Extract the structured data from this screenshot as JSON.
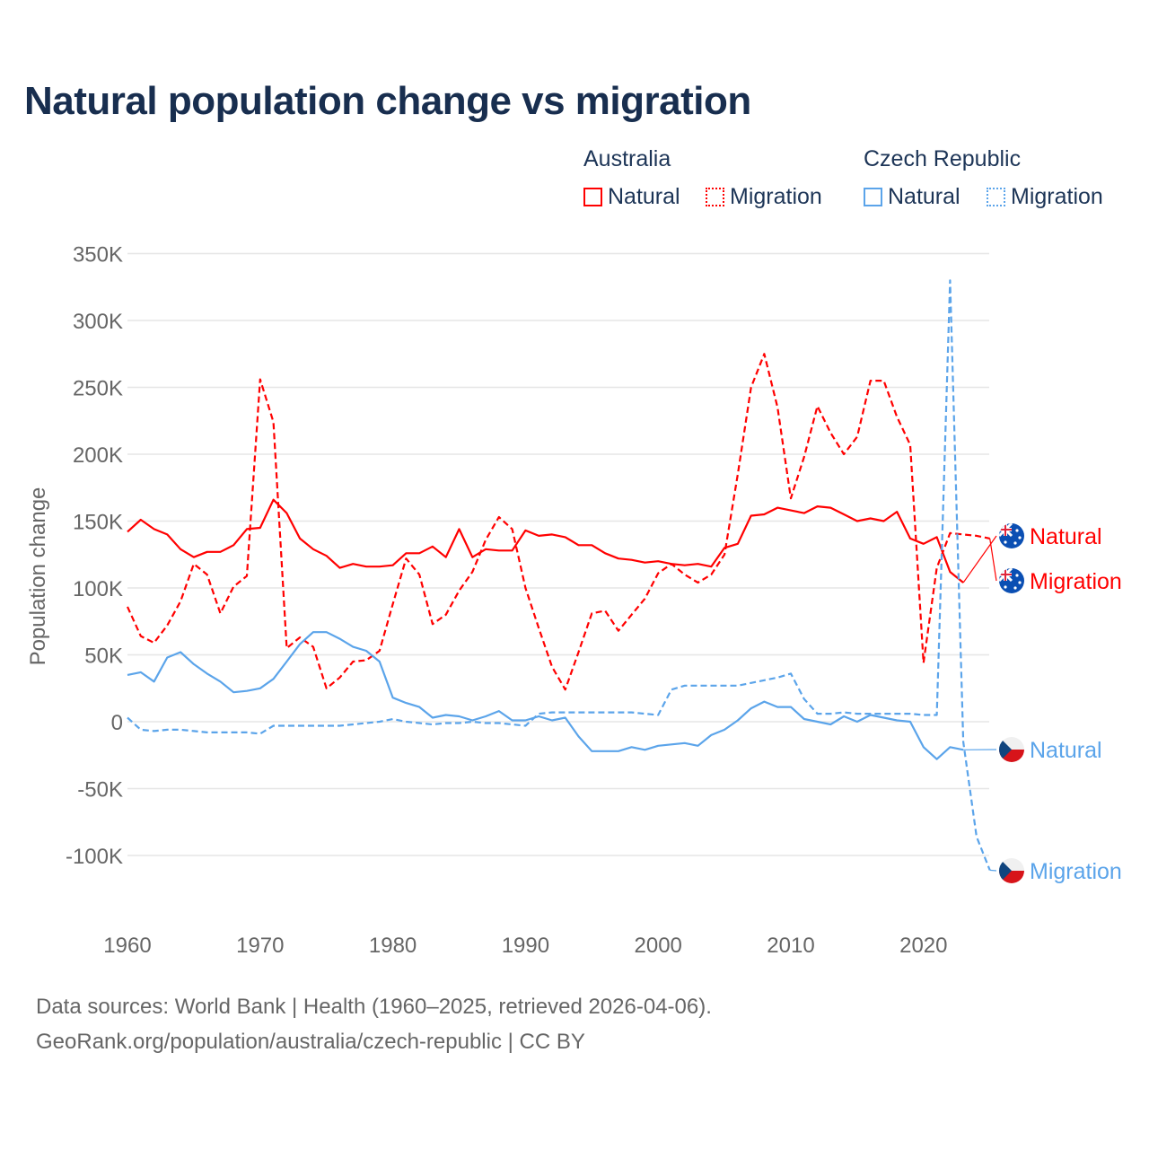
{
  "title": "Natural population change vs migration",
  "legend": {
    "groups": [
      {
        "label": "Australia",
        "items": [
          {
            "label": "Natural",
            "style": "solid"
          },
          {
            "label": "Migration",
            "style": "dashed"
          }
        ],
        "color": "#ff0000"
      },
      {
        "label": "Czech Republic",
        "items": [
          {
            "label": "Natural",
            "style": "solid"
          },
          {
            "label": "Migration",
            "style": "dashed"
          }
        ],
        "color": "#5ba4ea"
      }
    ]
  },
  "footer": {
    "line1": "Data sources: World Bank | Health (1960–2025, retrieved 2026-04-06).",
    "line2": "GeoRank.org/population/australia/czech-republic | CC BY"
  },
  "chart_data": {
    "type": "line",
    "title": "Natural population change vs migration",
    "xlabel": "",
    "ylabel": "Population change",
    "xlim": [
      1960,
      2025
    ],
    "ylim": [
      -125000,
      350000
    ],
    "yticks": [
      -100000,
      -50000,
      0,
      50000,
      100000,
      150000,
      200000,
      250000,
      300000,
      350000
    ],
    "ytick_labels": [
      "-100K",
      "-50K",
      "0",
      "50K",
      "100K",
      "150K",
      "200K",
      "250K",
      "300K",
      "350K"
    ],
    "xticks": [
      1960,
      1970,
      1980,
      1990,
      2000,
      2010,
      2020
    ],
    "xtick_labels": [
      "1960",
      "1970",
      "1980",
      "1990",
      "2000",
      "2010",
      "2020"
    ],
    "grid": true,
    "legend_position": "top-right",
    "unit": "thousands",
    "series": [
      {
        "name": "Australia Natural",
        "end_label": "Natural",
        "color": "#ff0000",
        "dash": false,
        "flag": "australia",
        "start": 1960,
        "values": [
          142,
          151,
          144,
          140,
          129,
          123,
          127,
          127,
          132,
          144,
          145,
          166,
          156,
          137,
          129,
          124,
          115,
          118,
          116,
          116,
          117,
          126,
          126,
          131,
          123,
          144,
          123,
          129,
          128,
          128,
          143,
          139,
          140,
          138,
          132,
          132,
          126,
          122,
          121,
          119,
          120,
          118,
          117,
          118,
          116,
          130,
          133,
          154,
          155,
          160,
          158,
          156,
          161,
          160,
          155,
          150,
          152,
          150,
          157,
          137,
          133,
          138,
          112,
          104
        ]
      },
      {
        "name": "Australia Migration",
        "end_label": "Migration",
        "color": "#ff0000",
        "dash": true,
        "flag": "australia",
        "start": 1960,
        "values": [
          86,
          64,
          59,
          72,
          90,
          118,
          110,
          81,
          101,
          109,
          256,
          224,
          55,
          63,
          56,
          25,
          33,
          45,
          46,
          53,
          88,
          122,
          110,
          73,
          80,
          98,
          112,
          136,
          153,
          144,
          100,
          70,
          41,
          24,
          52,
          81,
          83,
          68,
          80,
          92,
          111,
          118,
          110,
          104,
          110,
          125,
          185,
          250,
          275,
          235,
          167,
          198,
          236,
          216,
          200,
          213,
          255,
          255,
          228,
          207,
          44,
          115,
          141,
          140,
          139,
          137
        ]
      },
      {
        "name": "Czech Republic Natural",
        "end_label": "Natural",
        "color": "#5ba4ea",
        "dash": false,
        "flag": "czech",
        "start": 1960,
        "values": [
          35,
          37,
          30,
          48,
          52,
          43,
          36,
          30,
          22,
          23,
          25,
          32,
          45,
          58,
          67,
          67,
          62,
          56,
          53,
          45,
          18,
          14,
          11,
          3,
          5,
          4,
          1,
          4,
          8,
          1,
          1,
          4,
          1,
          3,
          -11,
          -22,
          -22,
          -22,
          -19,
          -21,
          -18,
          -17,
          -16,
          -18,
          -10,
          -6,
          1,
          10,
          15,
          11,
          11,
          2,
          0,
          -2,
          4,
          0,
          5,
          3,
          1,
          0,
          -19,
          -28,
          -19,
          -21
        ]
      },
      {
        "name": "Czech Republic Migration",
        "end_label": "Migration",
        "color": "#5ba4ea",
        "dash": true,
        "flag": "czech",
        "start": 1960,
        "values": [
          3,
          -6,
          -7,
          -6,
          -6,
          -7,
          -8,
          -8,
          -8,
          -8,
          -9,
          -3,
          -3,
          -3,
          -3,
          -3,
          -3,
          -2,
          -1,
          0,
          2,
          0,
          -1,
          -2,
          -1,
          -1,
          0,
          -1,
          -1,
          -2,
          -3,
          6,
          7,
          7,
          7,
          7,
          7,
          7,
          7,
          6,
          5,
          24,
          27,
          27,
          27,
          27,
          27,
          29,
          31,
          33,
          36,
          17,
          6,
          6,
          7,
          6,
          6,
          6,
          6,
          6,
          5,
          5,
          330,
          -15,
          -86,
          -111
        ]
      }
    ]
  }
}
